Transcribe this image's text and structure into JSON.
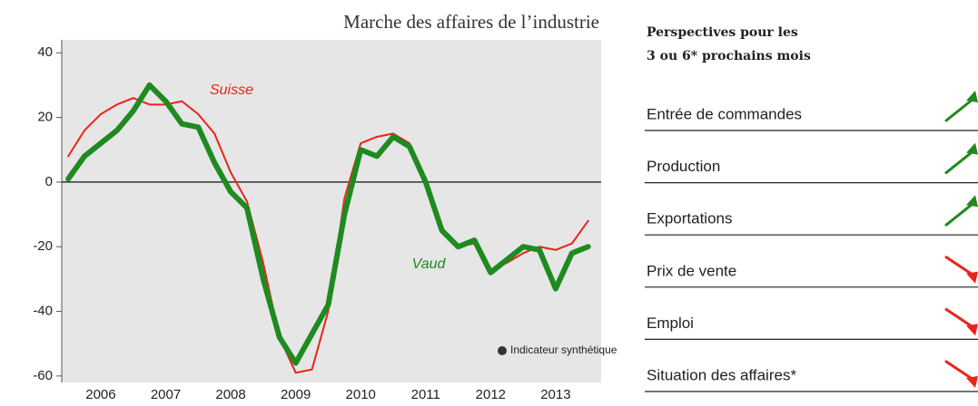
{
  "chart_data": {
    "type": "line",
    "title": "Marche des affaires de l’industrie",
    "x": [
      2006,
      2006.25,
      2006.5,
      2006.75,
      2007,
      2007.25,
      2007.5,
      2007.75,
      2008,
      2008.25,
      2008.5,
      2008.75,
      2009,
      2009.25,
      2009.5,
      2009.75,
      2010,
      2010.25,
      2010.5,
      2010.75,
      2011,
      2011.25,
      2011.5,
      2011.75,
      2012,
      2012.25,
      2012.5,
      2012.75,
      2013,
      2013.25,
      2013.5,
      2013.75,
      2014
    ],
    "series": [
      {
        "name": "Suisse",
        "color": "#e8251b",
        "values": [
          8,
          16,
          21,
          24,
          26,
          24,
          24,
          25,
          21,
          15,
          3,
          -6,
          -25,
          -48,
          -59,
          -58,
          -40,
          -5,
          12,
          14,
          15,
          12,
          0,
          -14,
          -20,
          -19,
          -27,
          -25,
          -22,
          -20,
          -21,
          -19,
          -12
        ]
      },
      {
        "name": "Vaud",
        "color": "#1f8a1f",
        "values": [
          1,
          8,
          12,
          16,
          22,
          30,
          25,
          18,
          17,
          6,
          -3,
          -8,
          -30,
          -48,
          -56,
          -47,
          -38,
          -10,
          10,
          8,
          14,
          11,
          0,
          -15,
          -20,
          -18,
          -28,
          -24,
          -20,
          -21,
          -33,
          -22,
          -20
        ]
      }
    ],
    "legend": "Indicateur synthétique",
    "xlim": [
      2005.9,
      2014.2
    ],
    "xticks": [
      {
        "value": 2006.5,
        "label": "2006"
      },
      {
        "value": 2007.5,
        "label": "2007"
      },
      {
        "value": 2008.5,
        "label": "2008"
      },
      {
        "value": 2009.5,
        "label": "2009"
      },
      {
        "value": 2010.5,
        "label": "2010"
      },
      {
        "value": 2011.5,
        "label": "2011"
      },
      {
        "value": 2012.5,
        "label": "2012"
      },
      {
        "value": 2013.5,
        "label": "2013"
      }
    ],
    "ylim": [
      -62,
      44
    ],
    "yticks": [
      -60,
      -40,
      -20,
      0,
      20,
      40
    ]
  },
  "outlook": {
    "heading": [
      "Perspectives pour les",
      "3 ou 6* prochains mois"
    ],
    "rows": [
      {
        "label": "Entrée de commandes",
        "trend": "up"
      },
      {
        "label": "Production",
        "trend": "up"
      },
      {
        "label": "Exportations",
        "trend": "up"
      },
      {
        "label": "Prix de vente",
        "trend": "down"
      },
      {
        "label": "Emploi",
        "trend": "down"
      },
      {
        "label": "Situation des affaires*",
        "trend": "down"
      }
    ]
  }
}
